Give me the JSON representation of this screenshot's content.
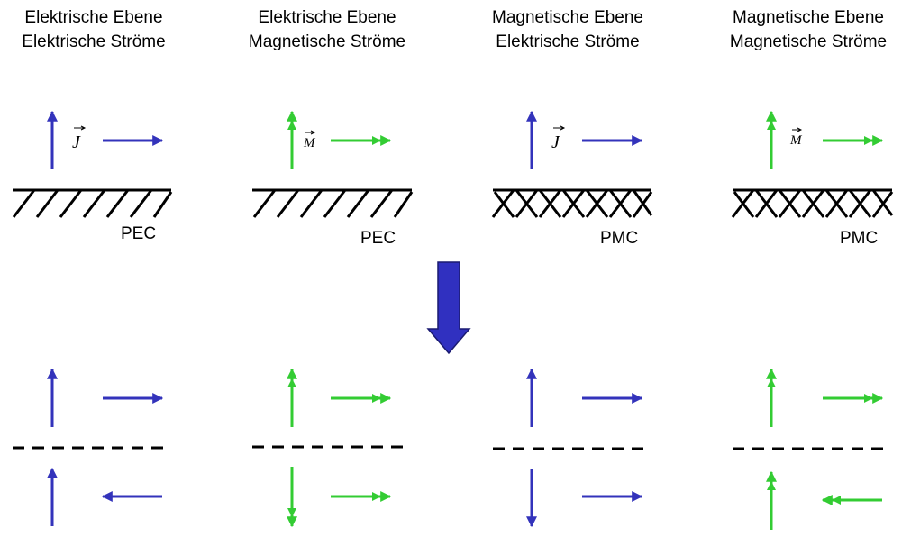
{
  "panels": [
    {
      "title_line1": "Elektrische Ebene",
      "title_line2": "Elektrische Ströme",
      "source_symbol": "J",
      "surface_label": "PEC"
    },
    {
      "title_line1": "Elektrische Ebene",
      "title_line2": "Magnetische Ströme",
      "source_symbol": "M",
      "surface_label": "PEC"
    },
    {
      "title_line1": "Magnetische Ebene",
      "title_line2": "Elektrische Ströme",
      "source_symbol": "J",
      "surface_label": "PMC"
    },
    {
      "title_line1": "Magnetische Ebene",
      "title_line2": "Magnetische Ströme",
      "source_symbol": "M",
      "surface_label": "PMC"
    }
  ],
  "colors": {
    "electric_current": "#3333bb",
    "magnetic_current": "#33cc33",
    "transition_arrow": "#3030c0",
    "ground": "#000000"
  }
}
